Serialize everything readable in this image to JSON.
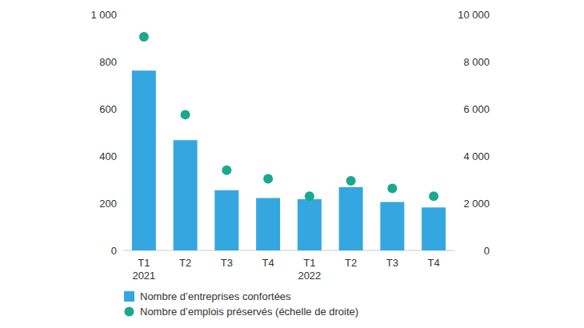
{
  "chart_data": {
    "type": "bar",
    "categories": [
      "T1\n2021",
      "T2",
      "T3",
      "T4",
      "T1\n2022",
      "T2",
      "T3",
      "T4"
    ],
    "series": [
      {
        "name": "Nombre d’entreprises confortées",
        "type": "bar",
        "color": "#35a7e0",
        "axis": "y",
        "values": [
          762,
          467,
          255,
          222,
          217,
          268,
          205,
          182
        ]
      },
      {
        "name": "Nombre d’emplois préservés (échelle de droite)",
        "type": "scatter",
        "color": "#1aa88e",
        "axis": "y2",
        "marker": "circle",
        "values": [
          9050,
          5750,
          3400,
          3030,
          2300,
          2950,
          2630,
          2300
        ]
      }
    ],
    "ylim": [
      0,
      1000
    ],
    "yticks": [
      0,
      200,
      400,
      600,
      800,
      {
        "value": 1000,
        "label": "1 000"
      }
    ],
    "y2lim": [
      0,
      10000
    ],
    "y2ticks": [
      0,
      {
        "value": 2000,
        "label": "2 000"
      },
      {
        "value": 4000,
        "label": "4 000"
      },
      {
        "value": 6000,
        "label": "6 000"
      },
      {
        "value": 8000,
        "label": "8 000"
      },
      {
        "value": 10000,
        "label": "10 000"
      }
    ],
    "grid": false,
    "legend": "bottom-left"
  }
}
